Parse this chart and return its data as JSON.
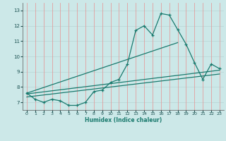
{
  "title": "",
  "xlabel": "Humidex (Indice chaleur)",
  "ylabel": "",
  "bg_color": "#cce8e8",
  "line_color": "#1a7a6e",
  "grid_color_v": "#e89090",
  "grid_color_h": "#b8d4d4",
  "xlim": [
    -0.5,
    23.5
  ],
  "ylim": [
    6.5,
    13.5
  ],
  "xticks": [
    0,
    1,
    2,
    3,
    4,
    5,
    6,
    7,
    8,
    9,
    10,
    11,
    12,
    13,
    14,
    15,
    16,
    17,
    18,
    19,
    20,
    21,
    22,
    23
  ],
  "yticks": [
    7,
    8,
    9,
    10,
    11,
    12,
    13
  ],
  "hours": [
    0,
    1,
    2,
    3,
    4,
    5,
    6,
    7,
    8,
    9,
    10,
    11,
    12,
    13,
    14,
    15,
    16,
    17,
    18,
    19,
    20,
    21,
    22,
    23
  ],
  "main_y": [
    7.6,
    7.2,
    7.0,
    7.2,
    7.1,
    6.8,
    6.8,
    7.0,
    7.7,
    7.8,
    8.3,
    8.5,
    9.5,
    11.7,
    12.0,
    11.4,
    12.8,
    12.7,
    11.75,
    10.8,
    9.6,
    8.5,
    9.5,
    9.2
  ],
  "trend1_x": [
    0,
    23
  ],
  "trend1_y": [
    7.55,
    9.1
  ],
  "trend2_x": [
    0,
    23
  ],
  "trend2_y": [
    7.35,
    8.85
  ],
  "trend3_x": [
    0,
    18
  ],
  "trend3_y": [
    7.6,
    10.9
  ]
}
